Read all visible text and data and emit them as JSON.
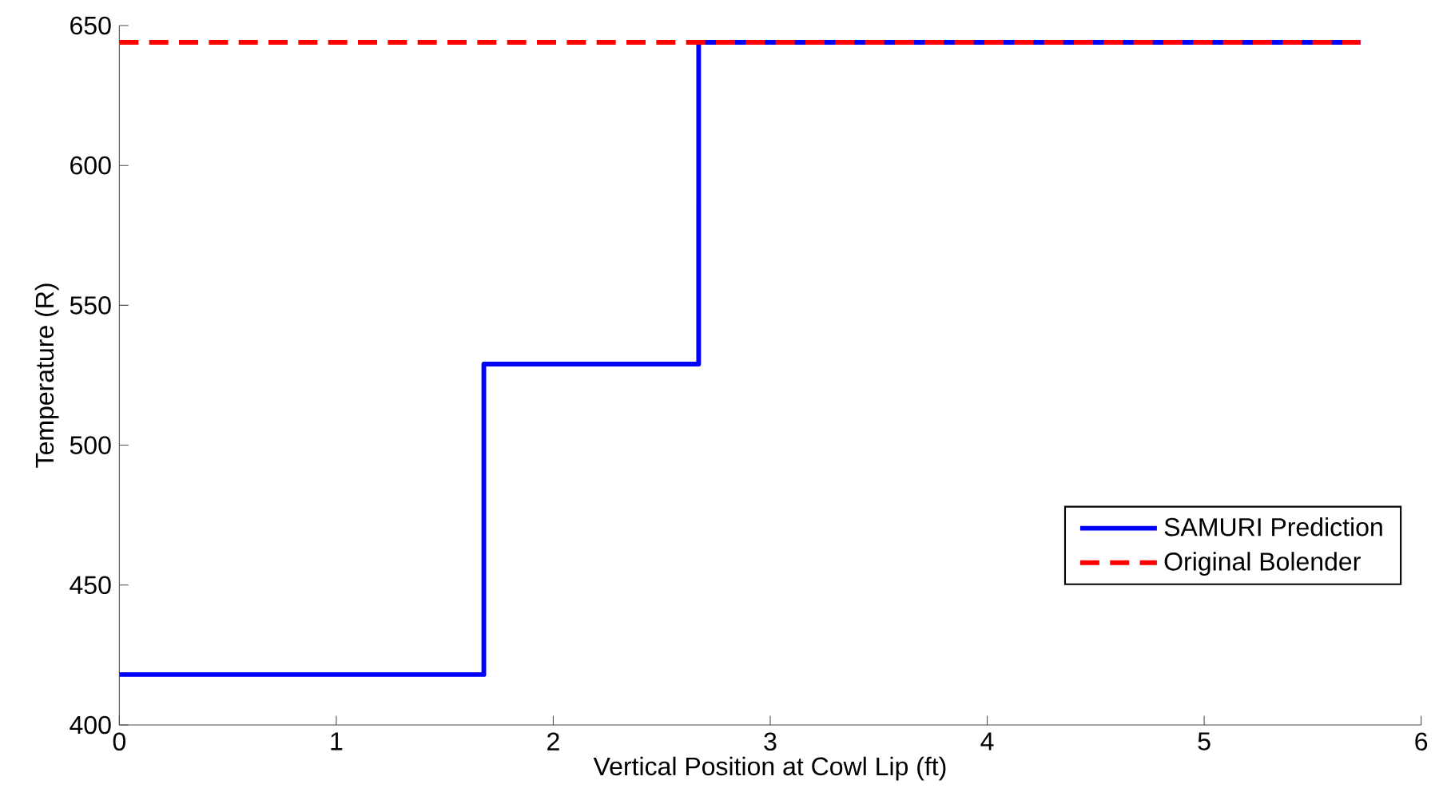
{
  "chart_data": {
    "type": "line",
    "xlabel": "Vertical Position at Cowl Lip (ft)",
    "ylabel": "Temperature (R)",
    "xlim": [
      0,
      6
    ],
    "xticks": [
      0,
      1,
      2,
      3,
      4,
      5,
      6
    ],
    "ylim": [
      400,
      650
    ],
    "yticks": [
      400,
      450,
      500,
      550,
      600,
      650
    ],
    "grid": false,
    "legend": "bottom right",
    "series": [
      {
        "name": "SAMURI Prediction",
        "type": "step",
        "color": "#0000ff",
        "line_style": "solid",
        "x": [
          0,
          1.68,
          2.67,
          5.72
        ],
        "values": [
          418,
          529,
          644,
          644
        ]
      },
      {
        "name": "Original Bolender",
        "color": "#ff0000",
        "line_style": "dashed",
        "x": [
          0,
          5.72
        ],
        "values": [
          644,
          644
        ]
      }
    ]
  }
}
